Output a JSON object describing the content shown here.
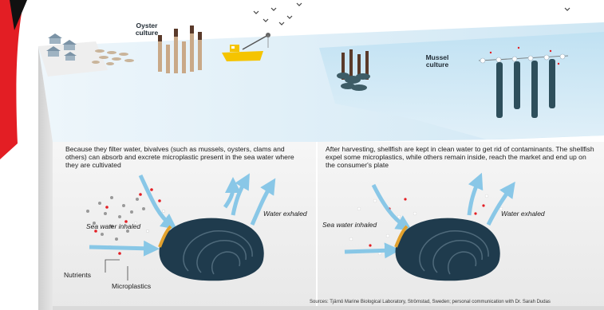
{
  "top_labels": {
    "oyster_culture": "Oyster\nculture",
    "mussel_culture": "Mussel\nculture"
  },
  "left_panel": {
    "description": "Because they filter water, bivalves (such as mussels, oysters, clams and others) can absorb and excrete microplastic present in the sea water where they are cultivated",
    "sea_water_inhaled": "Sea water inhaled",
    "water_exhaled": "Water exhaled",
    "nutrients": "Nutrients",
    "microplastics": "Microplastics"
  },
  "right_panel": {
    "description": "After harvesting, shellfish are kept in clean water to get rid of contaminants. The shellfish expel some microplastics, while others remain inside, reach the market and end up on the consumer's plate",
    "sea_water_inhaled": "Sea water inhaled",
    "water_exhaled": "Water exhaled"
  },
  "source": "Sources: Tjärnö Marine Biological Laboratory, Strömstad, Sweden; personal communication with Dr. Sarah Dudas",
  "colors": {
    "sea_light": "#d9ecf6",
    "sea_mid": "#bfe0f1",
    "panel_bg": "#f2f2f2",
    "arrow_blue": "#7ec3e6",
    "mussel_dark": "#1f3b4d",
    "red_accent": "#e31e24",
    "boat_yellow": "#f5c400"
  }
}
